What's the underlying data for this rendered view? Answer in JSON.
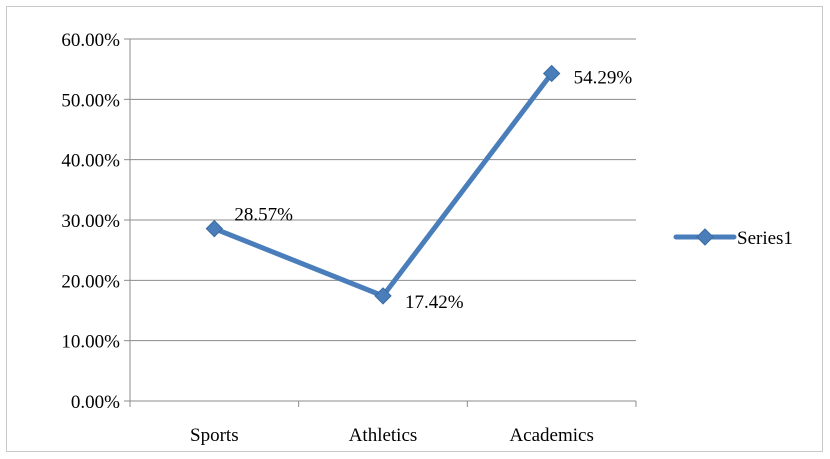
{
  "chart_data": {
    "type": "line",
    "categories": [
      "Sports",
      "Athletics",
      "Academics"
    ],
    "series": [
      {
        "name": "Series1",
        "values": [
          28.57,
          17.42,
          54.29
        ],
        "data_labels": [
          "28.57%",
          "17.42%",
          "54.29%"
        ],
        "color": "#4a7ebb",
        "marker": "diamond"
      }
    ],
    "ylim": [
      0,
      60
    ],
    "yticks": [
      0,
      10,
      20,
      30,
      40,
      50,
      60
    ],
    "ytick_labels": [
      "0.00%",
      "10.00%",
      "20.00%",
      "30.00%",
      "40.00%",
      "50.00%",
      "60.00%"
    ],
    "grid": true,
    "legend_position": "right",
    "gridline_color": "#8c8c8c"
  }
}
